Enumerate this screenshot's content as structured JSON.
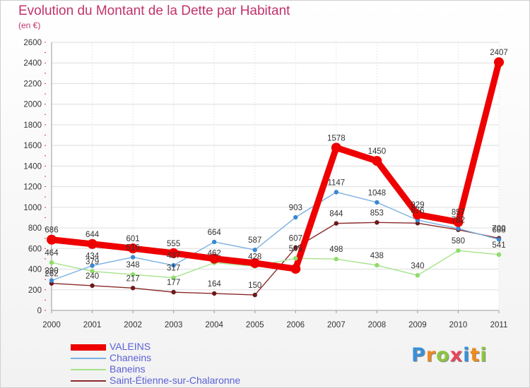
{
  "title": "Evolution du Montant de la Dette par Habitant",
  "unit_label": "(en €)",
  "logo": {
    "text": "Proxiti",
    "letters": [
      {
        "ch": "P",
        "color": "#3b8fd8"
      },
      {
        "ch": "r",
        "color": "#f08a1c"
      },
      {
        "ch": "o",
        "color": "#8cc63f"
      },
      {
        "ch": "x",
        "color": "#e8465b"
      },
      {
        "ch": "i",
        "color": "#3b8fd8"
      },
      {
        "ch": "t",
        "color": "#f08a1c"
      },
      {
        "ch": "i",
        "color": "#8cc63f"
      }
    ]
  },
  "chart_data": {
    "type": "line",
    "title": "Evolution du Montant de la Dette par Habitant",
    "ylabel": "(en €)",
    "xlabel": "",
    "x": [
      "2000",
      "2001",
      "2002",
      "2003",
      "2004",
      "2005",
      "2006",
      "2007",
      "2008",
      "2009",
      "2010",
      "2011"
    ],
    "ylim": [
      0,
      2600
    ],
    "yticks": [
      0,
      200,
      400,
      600,
      800,
      1000,
      1200,
      1400,
      1600,
      1800,
      2000,
      2200,
      2400,
      2600
    ],
    "grid": "horizontal",
    "legend_position": "bottom-left",
    "series": [
      {
        "name": "VALEINS",
        "color": "#ee0000",
        "marker_color": "#ee0000",
        "values": [
          686,
          644,
          601,
          555,
          502,
          459,
          403,
          1578,
          1450,
          929,
          857,
          2407
        ],
        "labels": [
          "686",
          "644",
          "601",
          "555",
          "",
          "",
          "",
          "1578",
          "1450",
          "929",
          "857",
          "2407"
        ]
      },
      {
        "name": "Chaneins",
        "color": "#7ab0e0",
        "marker_color": "#3b88d0",
        "values": [
          290,
          434,
          516,
          437,
          664,
          587,
          903,
          1147,
          1048,
          876,
          794,
          688
        ],
        "labels": [
          "290",
          "434",
          "516",
          "437",
          "664",
          "587",
          "903",
          "1147",
          "1048",
          "876",
          "",
          "688"
        ]
      },
      {
        "name": "Baneins",
        "color": "#a5e38a",
        "marker_color": "#8fdc6a",
        "values": [
          464,
          379,
          348,
          317,
          462,
          428,
          505,
          498,
          438,
          340,
          580,
          541
        ],
        "labels": [
          "464",
          "379",
          "348",
          "317",
          "462",
          "428",
          "505",
          "498",
          "438",
          "340",
          "580",
          "541"
        ]
      },
      {
        "name": "Saint-Étienne-sur-Chalaronne",
        "color": "#8b2a2a",
        "marker_color": "#6a1a1a",
        "values": [
          262,
          240,
          217,
          177,
          164,
          150,
          607,
          844,
          853,
          846,
          782,
          700
        ],
        "labels": [
          "262",
          "240",
          "217",
          "177",
          "164",
          "150",
          "607",
          "844",
          "853",
          "",
          "782",
          "700"
        ]
      }
    ]
  }
}
